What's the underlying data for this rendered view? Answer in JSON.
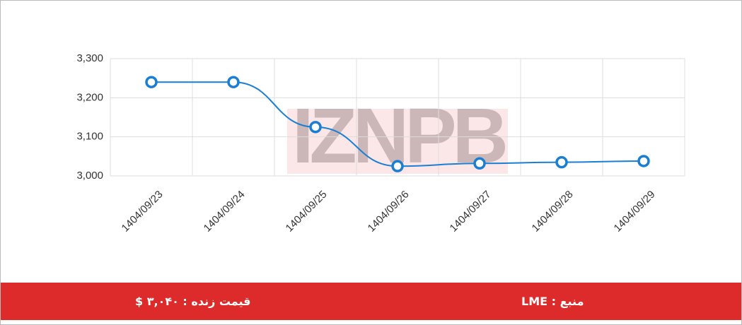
{
  "chart_data": {
    "type": "line",
    "categories": [
      "1404/09/23",
      "1404/09/24",
      "1404/09/25",
      "1404/09/26",
      "1404/09/27",
      "1404/09/28",
      "1404/09/29"
    ],
    "series": [
      {
        "name": "LME",
        "color": "#1a7fd4",
        "values": [
          3240,
          3240,
          3125,
          3025,
          3032,
          3035,
          3038
        ]
      }
    ],
    "ylim": [
      3000,
      3300
    ],
    "yticks": [
      {
        "value": 3000,
        "label": "3,000"
      },
      {
        "value": 3100,
        "label": "3,100"
      },
      {
        "value": 3200,
        "label": "3,200"
      },
      {
        "value": 3300,
        "label": "3,300"
      }
    ],
    "grid": true,
    "watermark": "IZNPB"
  },
  "footer": {
    "price": "قیمت زنده : ۳,۰۴۰ $",
    "source": "منبع : LME"
  }
}
